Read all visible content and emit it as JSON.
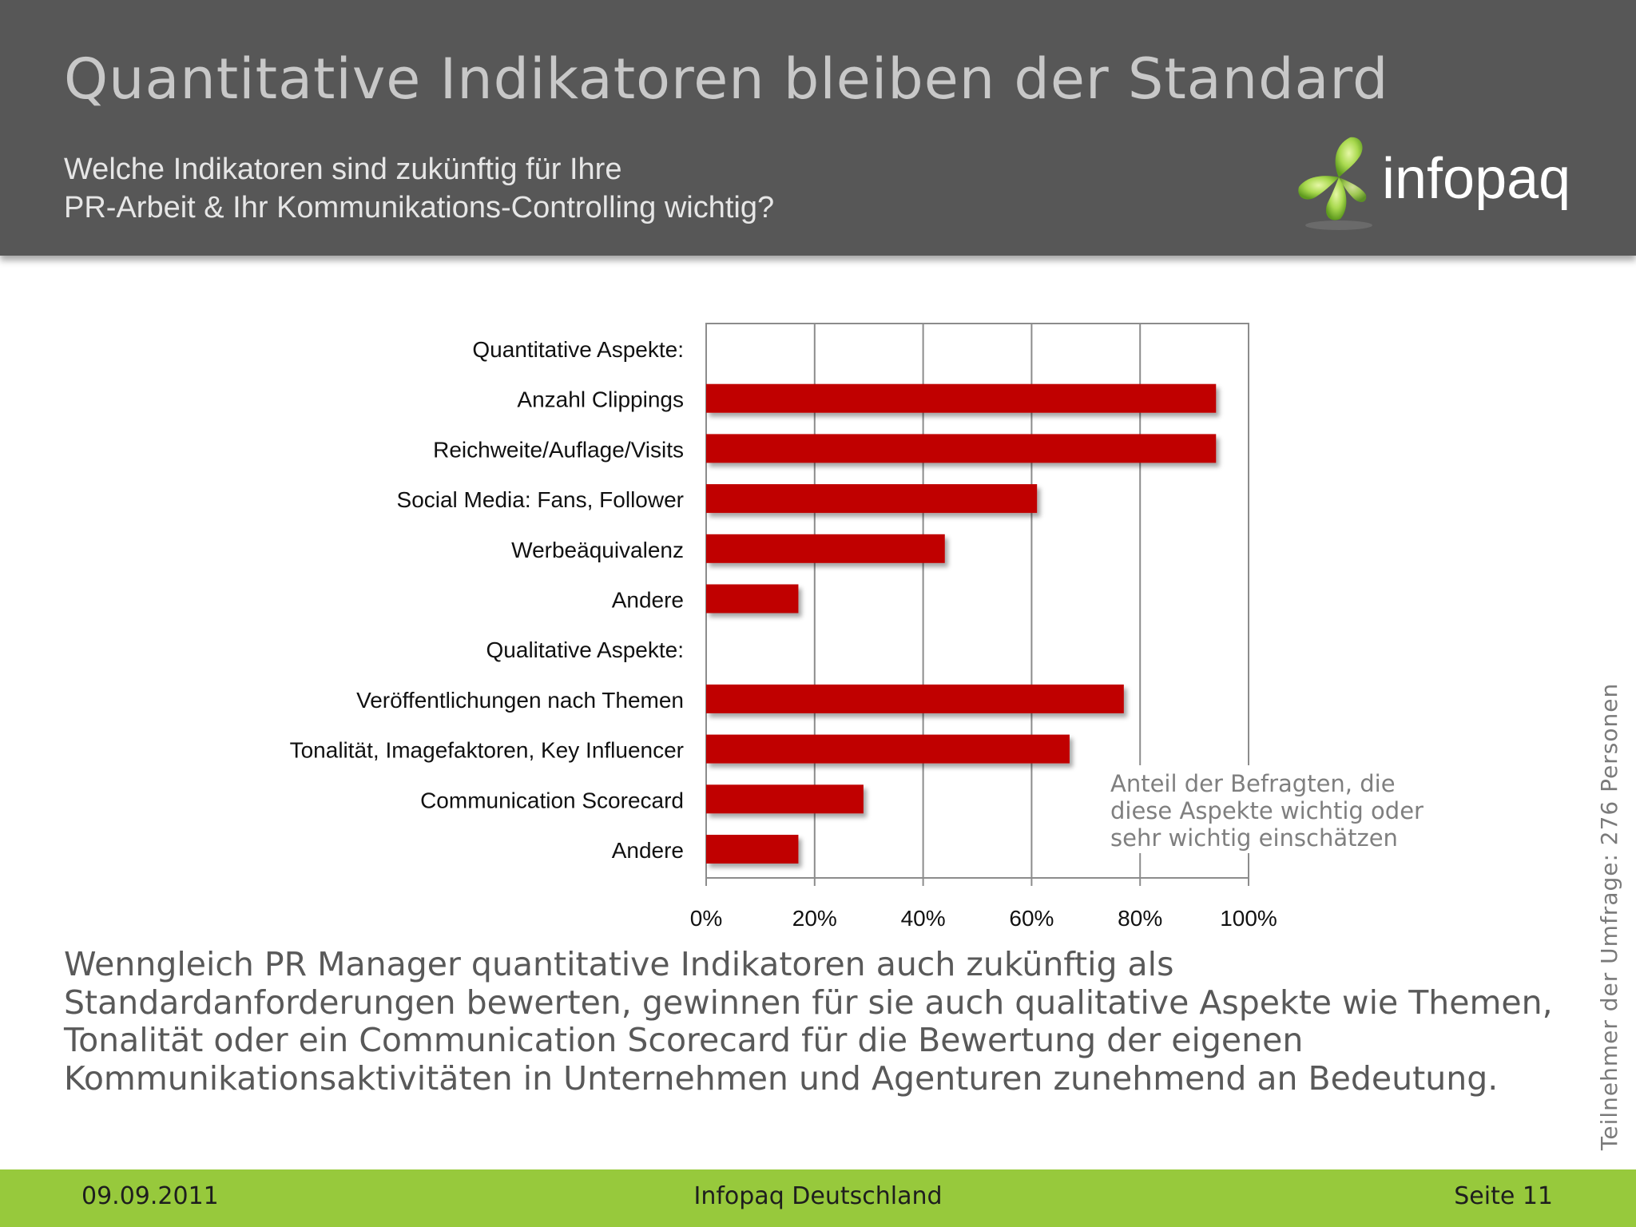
{
  "header": {
    "title": "Quantitative Indikatoren bleiben der Standard",
    "subtitle_lines": [
      "Welche Indikatoren sind zukünftig für Ihre",
      "PR-Arbeit & Ihr Kommunikations-Controlling wichtig?"
    ],
    "logo_text": "infopaq"
  },
  "chart_data": {
    "type": "bar",
    "orientation": "horizontal",
    "title": "",
    "xlabel": "",
    "ylabel": "",
    "xlim": [
      0,
      100
    ],
    "x_ticks": [
      "0%",
      "20%",
      "40%",
      "60%",
      "80%",
      "100%"
    ],
    "categories": [
      "Quantitative Aspekte:",
      "Anzahl Clippings",
      "Reichweite/Auflage/Visits",
      "Social Media: Fans, Follower",
      "Werbeäquivalenz",
      "Andere",
      "Qualitative Aspekte:",
      "Veröffentlichungen nach Themen",
      "Tonalität, Imagefaktoren, Key Influencer",
      "Communication Scorecard",
      "Andere"
    ],
    "values": [
      null,
      94,
      94,
      61,
      44,
      17,
      null,
      77,
      67,
      29,
      17
    ],
    "bar_color": "#c00000",
    "grid": true,
    "annotation_lines": [
      "Anteil der Befragten, die",
      "diese Aspekte wichtig oder",
      "sehr wichtig einschätzen"
    ]
  },
  "side_note": "Teilnehmer der Umfrage: 276 Personen",
  "body_text": "Wenngleich PR Manager quantitative Indikatoren auch zukünftig als Standardanforderungen bewerten, gewinnen für sie auch qualitative Aspekte wie Themen, Tonalität oder ein Communication Scorecard für die Bewertung der eigenen Kommunikationsaktivitäten in Unternehmen und Agenturen zunehmend an Bedeutung.",
  "footer": {
    "date": "09.09.2011",
    "company": "Infopaq Deutschland",
    "page": "Seite 11"
  },
  "colors": {
    "header_bg": "#575757",
    "footer_bg": "#97c93c",
    "logo_green": "#8cc63f",
    "bar": "#c00000"
  }
}
